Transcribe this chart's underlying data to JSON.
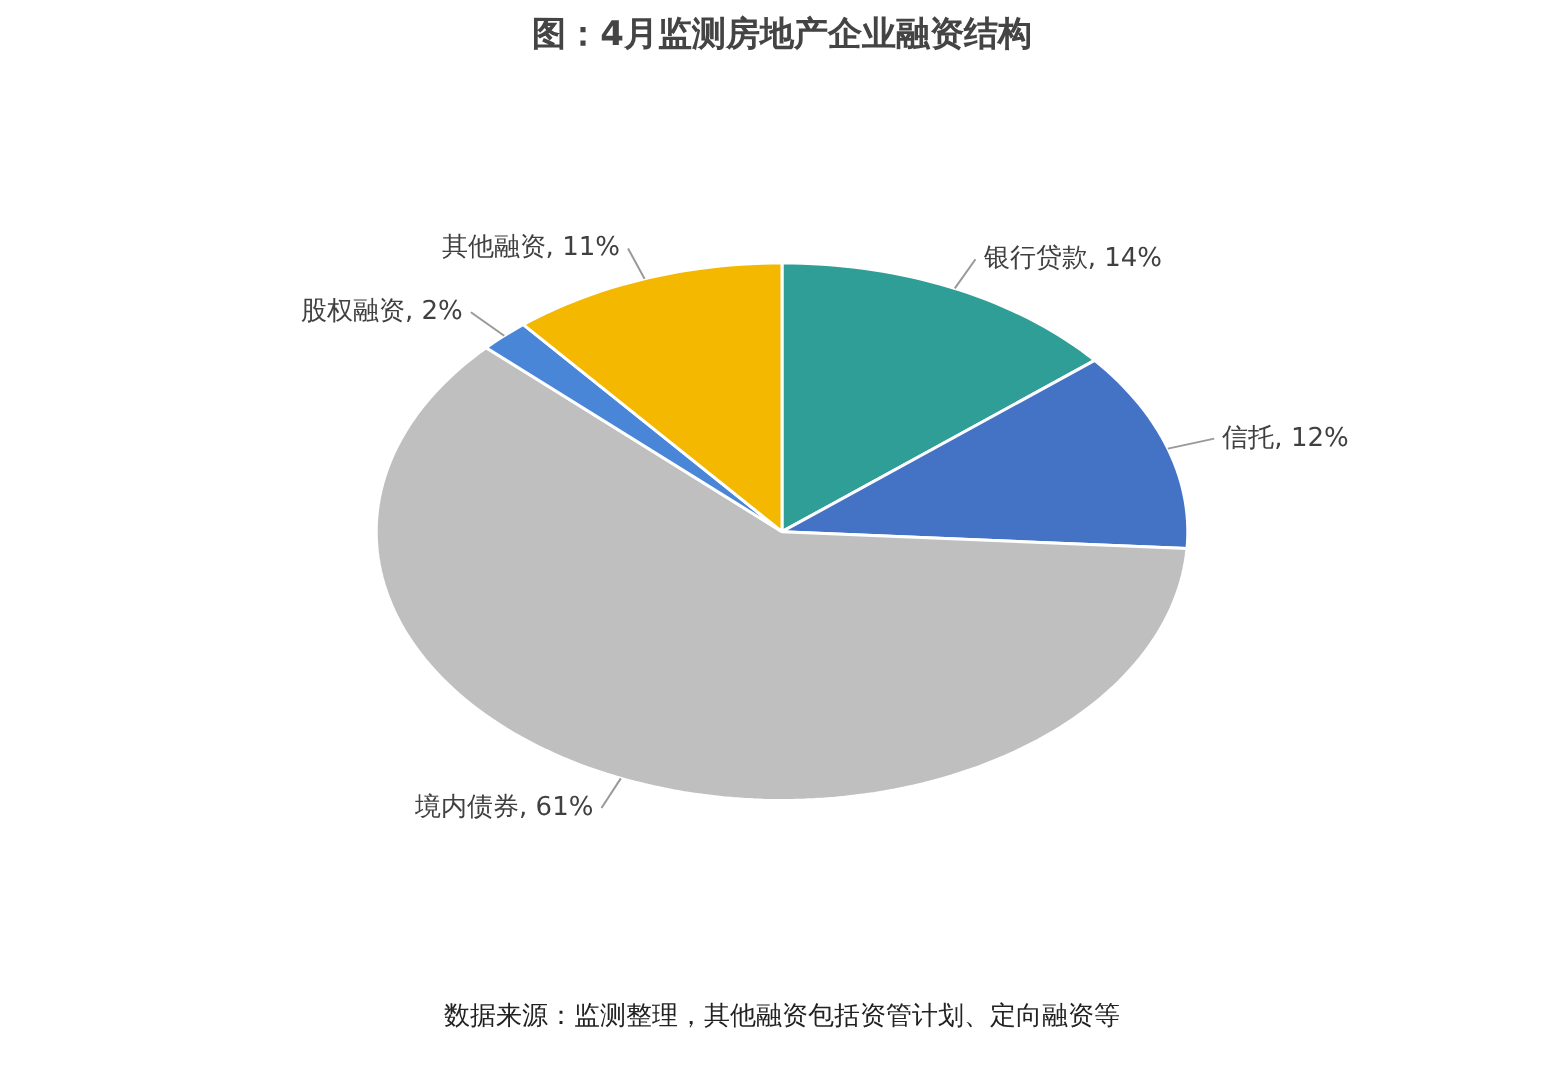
{
  "chart_data": {
    "type": "pie",
    "title": "图：4月监测房地产企业融资结构",
    "categories": [
      "银行贷款",
      "信托",
      "境内债券",
      "股权融资",
      "其他融资"
    ],
    "values": [
      14,
      12,
      61,
      2,
      11
    ],
    "value_labels": [
      "14%",
      "12%",
      "61%",
      "2%",
      "11%"
    ],
    "colors": [
      "#2e9e96",
      "#4472c4",
      "#bfbfbf",
      "#4a86d8",
      "#f5b800"
    ],
    "legend": false,
    "annotations": [
      "数据来源：监测整理，其他融资包括资管计划、定向融资等"
    ]
  }
}
